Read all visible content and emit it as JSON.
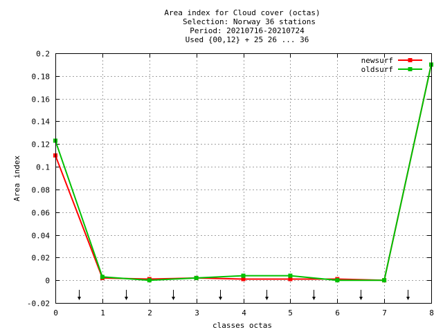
{
  "chart_data": {
    "type": "line",
    "title_lines": [
      "Area index  for Cloud cover (octas)",
      "Selection: Norway     36 stations",
      "Period: 20210716-20210724",
      "Used {00,12} + 25 26 ... 36"
    ],
    "xlabel": "classes octas",
    "ylabel": "Area index",
    "xlim": [
      0,
      8
    ],
    "ylim": [
      -0.02,
      0.2
    ],
    "x_ticks": [
      "0",
      "1",
      "2",
      "3",
      "4",
      "5",
      "6",
      "7",
      "8"
    ],
    "y_ticks": [
      "-0.02",
      "0",
      "0.02",
      "0.04",
      "0.06",
      "0.08",
      "0.1",
      "0.12",
      "0.14",
      "0.16",
      "0.18",
      "0.2"
    ],
    "grid": true,
    "legend_position": "top-right",
    "arrow_markers_x": [
      0.5,
      1.5,
      2.5,
      3.5,
      4.5,
      5.5,
      6.5,
      7.5
    ],
    "series": [
      {
        "name": "newsurf",
        "color": "#ff0000",
        "x": [
          0,
          1,
          2,
          3,
          4,
          5,
          6,
          7,
          8
        ],
        "y": [
          0.11,
          0.002,
          0.001,
          0.002,
          0.001,
          0.001,
          0.001,
          0.0,
          0.19
        ]
      },
      {
        "name": "oldsurf",
        "color": "#00c000",
        "x": [
          0,
          1,
          2,
          3,
          4,
          5,
          6,
          7,
          8
        ],
        "y": [
          0.123,
          0.003,
          0.0,
          0.002,
          0.004,
          0.004,
          0.0,
          0.0,
          0.19
        ]
      }
    ]
  }
}
